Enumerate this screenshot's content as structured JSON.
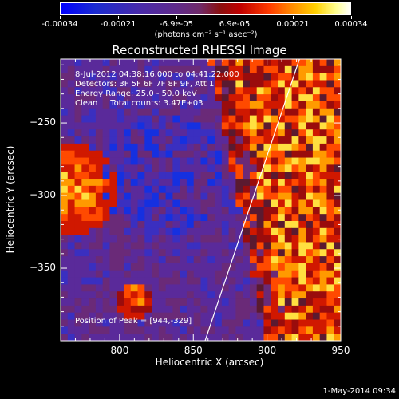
{
  "colorbar": {
    "ticks": [
      "-0.00034",
      "-0.00021",
      "-6.9e-05",
      "6.9e-05",
      "0.00021",
      "0.00034"
    ],
    "unit": "(photons cm⁻² s⁻¹ asec⁻²)"
  },
  "header": {
    "time_range": "8-Jul-2012 04:38:16.000 to 04:41:22.000",
    "detectors": "Detectors: 3F 5F 6F 7F 8F 9F, Att 1",
    "energy": "Energy Range: 25.0 - 50.0 keV",
    "clean": "Clean     Total counts: 3.47E+03",
    "peak": "Position of Peak = [944,-329]"
  },
  "timestamp": "1-May-2014 09:34",
  "chart_data": {
    "type": "heatmap",
    "title": "Reconstructed RHESSI Image",
    "xlabel": "Heliocentric X (arcsec)",
    "ylabel": "Heliocentric Y (arcsec)",
    "xlim": [
      760,
      950
    ],
    "ylim": [
      -400,
      -206
    ],
    "xticks": [
      800,
      850,
      900,
      950
    ],
    "yticks": [
      -250,
      -300,
      -350
    ],
    "colorbar_range": [
      -0.00034,
      0.00034
    ],
    "limb_line": {
      "x": [
        858,
        922
      ],
      "y": [
        -400,
        -206
      ]
    },
    "peak": {
      "x": 944,
      "y": -329
    }
  }
}
